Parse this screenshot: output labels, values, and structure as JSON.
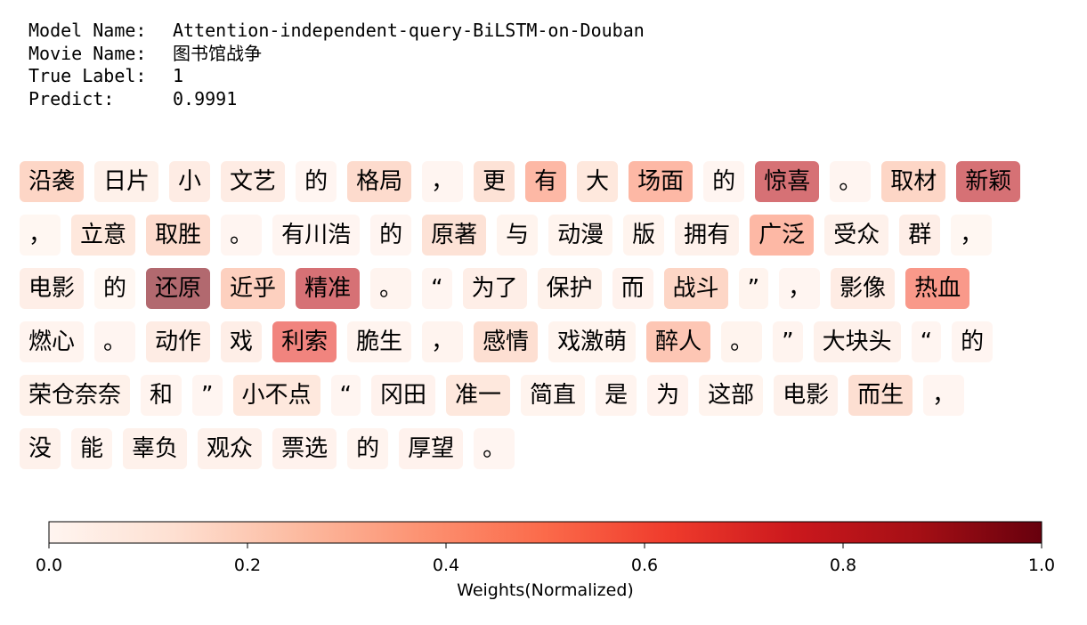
{
  "header": [
    {
      "label": "Model Name:",
      "value": "Attention-independent-query-BiLSTM-on-Douban"
    },
    {
      "label": "Movie Name:",
      "value": "图书馆战争"
    },
    {
      "label": "True Label:",
      "value": "1"
    },
    {
      "label": "Predict:",
      "value": "0.9991"
    }
  ],
  "rows": [
    [
      {
        "text": "沿袭",
        "weight": 0.25
      },
      {
        "text": "日片",
        "weight": 0.08
      },
      {
        "text": "小",
        "weight": 0.12
      },
      {
        "text": "文艺",
        "weight": 0.12
      },
      {
        "text": "的",
        "weight": 0.03
      },
      {
        "text": "格局",
        "weight": 0.22
      },
      {
        "text": "，",
        "weight": 0.03
      },
      {
        "text": "更",
        "weight": 0.18
      },
      {
        "text": "有",
        "weight": 0.4
      },
      {
        "text": "大",
        "weight": 0.15
      },
      {
        "text": "场面",
        "weight": 0.4
      },
      {
        "text": "的",
        "weight": 0.03
      },
      {
        "text": "惊喜",
        "weight": 0.8
      },
      {
        "text": "。",
        "weight": 0.03
      },
      {
        "text": "取材",
        "weight": 0.25
      },
      {
        "text": "新颖",
        "weight": 0.8
      }
    ],
    [
      {
        "text": "，",
        "weight": 0.02
      },
      {
        "text": "立意",
        "weight": 0.15
      },
      {
        "text": "取胜",
        "weight": 0.22
      },
      {
        "text": "。",
        "weight": 0.03
      },
      {
        "text": "有川浩",
        "weight": 0.03
      },
      {
        "text": "的",
        "weight": 0.03
      },
      {
        "text": "原著",
        "weight": 0.18
      },
      {
        "text": "与",
        "weight": 0.05
      },
      {
        "text": "动漫",
        "weight": 0.05
      },
      {
        "text": "版",
        "weight": 0.05
      },
      {
        "text": "拥有",
        "weight": 0.07
      },
      {
        "text": "广泛",
        "weight": 0.4
      },
      {
        "text": "受众",
        "weight": 0.07
      },
      {
        "text": "群",
        "weight": 0.1
      },
      {
        "text": "，",
        "weight": 0.02
      }
    ],
    [
      {
        "text": "电影",
        "weight": 0.1
      },
      {
        "text": "的",
        "weight": 0.02
      },
      {
        "text": "还原",
        "weight": 0.95
      },
      {
        "text": "近乎",
        "weight": 0.28
      },
      {
        "text": "精准",
        "weight": 0.8
      },
      {
        "text": "。",
        "weight": 0.04
      },
      {
        "text": "“",
        "weight": 0.03
      },
      {
        "text": "为了",
        "weight": 0.1
      },
      {
        "text": "保护",
        "weight": 0.08
      },
      {
        "text": "而",
        "weight": 0.06
      },
      {
        "text": "战斗",
        "weight": 0.25
      },
      {
        "text": "”",
        "weight": 0.05
      },
      {
        "text": "，",
        "weight": 0.03
      },
      {
        "text": "影像",
        "weight": 0.12
      },
      {
        "text": "热血",
        "weight": 0.55
      }
    ],
    [
      {
        "text": "燃心",
        "weight": 0.04
      },
      {
        "text": "。",
        "weight": 0.03
      },
      {
        "text": "动作",
        "weight": 0.12
      },
      {
        "text": "戏",
        "weight": 0.1
      },
      {
        "text": "利索",
        "weight": 0.65
      },
      {
        "text": "脆生",
        "weight": 0.04
      },
      {
        "text": "，",
        "weight": 0.04
      },
      {
        "text": "感情",
        "weight": 0.2
      },
      {
        "text": "戏激萌",
        "weight": 0.05
      },
      {
        "text": "醉人",
        "weight": 0.33
      },
      {
        "text": "。",
        "weight": 0.05
      },
      {
        "text": "”",
        "weight": 0.04
      },
      {
        "text": "大块头",
        "weight": 0.07
      },
      {
        "text": "“",
        "weight": 0.03
      },
      {
        "text": "的",
        "weight": 0.03
      }
    ],
    [
      {
        "text": "荣仓奈奈",
        "weight": 0.08
      },
      {
        "text": "和",
        "weight": 0.04
      },
      {
        "text": "”",
        "weight": 0.03
      },
      {
        "text": "小不点",
        "weight": 0.15
      },
      {
        "text": "“",
        "weight": 0.03
      },
      {
        "text": "冈田",
        "weight": 0.06
      },
      {
        "text": "准一",
        "weight": 0.15
      },
      {
        "text": "简直",
        "weight": 0.05
      },
      {
        "text": "是",
        "weight": 0.04
      },
      {
        "text": "为",
        "weight": 0.06
      },
      {
        "text": "这部",
        "weight": 0.05
      },
      {
        "text": "电影",
        "weight": 0.07
      },
      {
        "text": "而生",
        "weight": 0.2
      },
      {
        "text": "，",
        "weight": 0.03
      }
    ],
    [
      {
        "text": "没",
        "weight": 0.07
      },
      {
        "text": "能",
        "weight": 0.04
      },
      {
        "text": "辜负",
        "weight": 0.07
      },
      {
        "text": "观众",
        "weight": 0.07
      },
      {
        "text": "票选",
        "weight": 0.06
      },
      {
        "text": "的",
        "weight": 0.04
      },
      {
        "text": "厚望",
        "weight": 0.06
      },
      {
        "text": "。",
        "weight": 0.03
      }
    ]
  ],
  "colorbar": {
    "label": "Weights(Normalized)",
    "lim": [
      0,
      1
    ],
    "ticks": [
      {
        "value": 0,
        "label": "0.0"
      },
      {
        "value": 0.2,
        "label": "0.2"
      },
      {
        "value": 0.4,
        "label": "0.4"
      },
      {
        "value": 0.6,
        "label": "0.6"
      },
      {
        "value": 0.8,
        "label": "0.8"
      },
      {
        "value": 1,
        "label": "1.0"
      }
    ]
  }
}
